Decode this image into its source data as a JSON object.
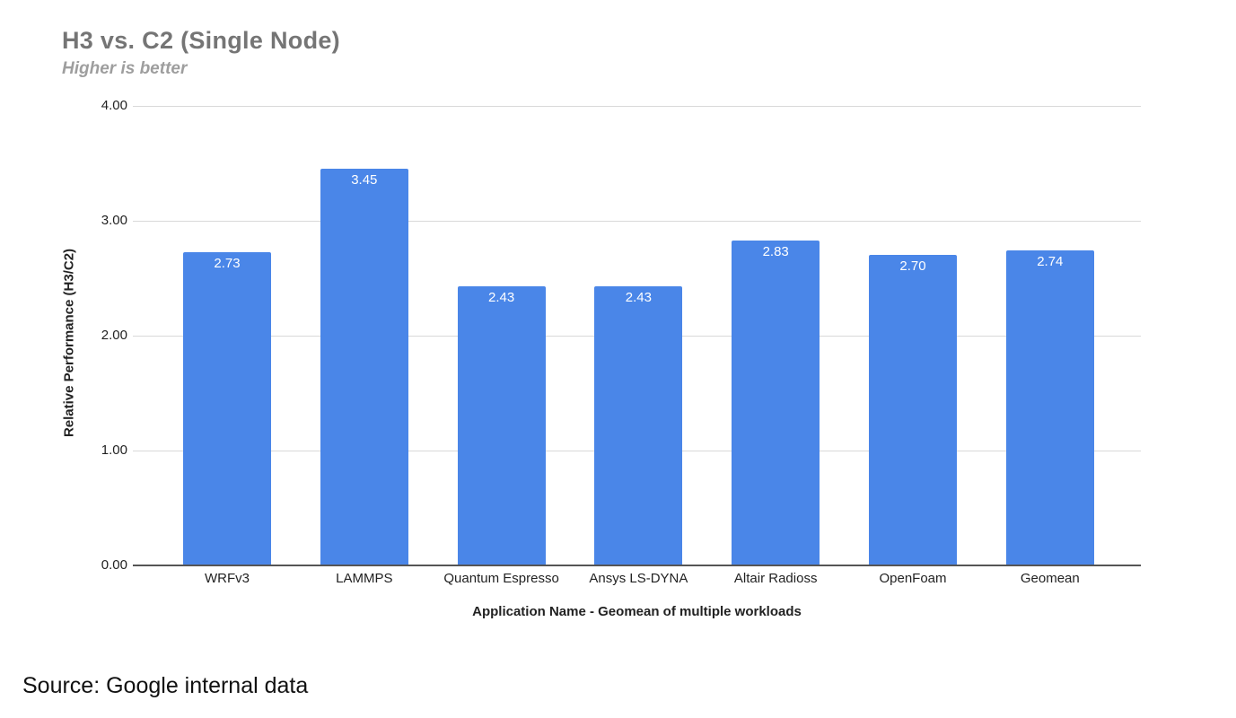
{
  "chart_data": {
    "type": "bar",
    "title": "H3 vs. C2 (Single Node)",
    "subtitle": "Higher is better",
    "xlabel": "Application Name - Geomean of multiple workloads",
    "ylabel": "Relative Performance (H3/C2)",
    "categories": [
      "WRFv3",
      "LAMMPS",
      "Quantum Espresso",
      "Ansys LS-DYNA",
      "Altair Radioss",
      "OpenFoam",
      "Geomean"
    ],
    "values": [
      2.73,
      3.45,
      2.43,
      2.43,
      2.83,
      2.7,
      2.74
    ],
    "value_labels": [
      "2.73",
      "3.45",
      "2.43",
      "2.43",
      "2.83",
      "2.70",
      "2.74"
    ],
    "ylim": [
      0,
      4
    ],
    "yticks": [
      "0.00",
      "1.00",
      "2.00",
      "3.00",
      "4.00"
    ],
    "grid": true,
    "legend": null,
    "bar_color": "#4a86e8"
  },
  "footer": {
    "source": "Source: Google internal data"
  }
}
